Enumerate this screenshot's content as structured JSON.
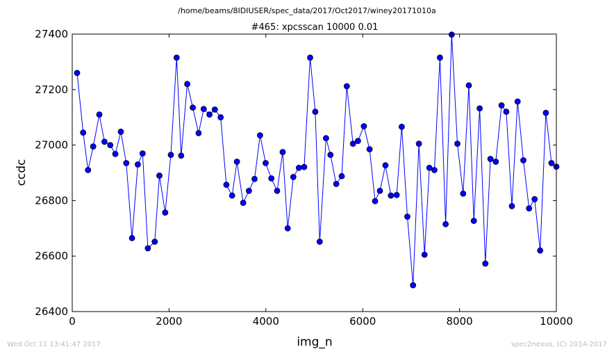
{
  "suptitle": "/home/beams/8IDIUSER/spec_data/2017/Oct2017/winey20171010a",
  "footer": {
    "left": "Wed Oct 11 13:41:47 2017",
    "right": "spec2nexus, (C) 2014-2017"
  },
  "colors": {
    "series": "#0000ff",
    "marker": "#0000ff"
  },
  "chart_data": {
    "type": "line",
    "title": "#465: xpcsscan 10000 0.01",
    "xlabel": "img_n",
    "ylabel": "ccdc",
    "xlim": [
      0,
      10000
    ],
    "ylim": [
      26400,
      27400
    ],
    "xticks": [
      "0",
      "2000",
      "4000",
      "6000",
      "8000",
      "10000"
    ],
    "yticks": [
      "26400",
      "26600",
      "26800",
      "27000",
      "27200",
      "27400"
    ],
    "grid": false,
    "x": [
      100,
      225,
      325,
      433,
      560,
      665,
      785,
      890,
      1005,
      1116,
      1235,
      1354,
      1453,
      1563,
      1704,
      1800,
      1919,
      2037,
      2156,
      2249,
      2376,
      2490,
      2610,
      2716,
      2835,
      2945,
      3066,
      3184,
      3303,
      3402,
      3531,
      3650,
      3766,
      3880,
      3995,
      4114,
      4232,
      4347,
      4450,
      4567,
      4681,
      4790,
      4914,
      5020,
      5112,
      5242,
      5335,
      5454,
      5566,
      5672,
      5799,
      5903,
      6024,
      6142,
      6255,
      6356,
      6469,
      6583,
      6701,
      6807,
      6923,
      7040,
      7160,
      7277,
      7377,
      7480,
      7595,
      7713,
      7838,
      7956,
      8074,
      8192,
      8295,
      8416,
      8534,
      8638,
      8749,
      8868,
      8965,
      9082,
      9200,
      9318,
      9436,
      9551,
      9666,
      9783,
      9900,
      10000
    ],
    "y": [
      27260,
      27045,
      26910,
      26995,
      27110,
      27012,
      27000,
      26968,
      27048,
      26935,
      26665,
      26930,
      26970,
      26628,
      26652,
      26890,
      26757,
      26965,
      27315,
      26962,
      27220,
      27135,
      27043,
      27130,
      27110,
      27128,
      27100,
      26857,
      26818,
      26940,
      26792,
      26835,
      26878,
      27035,
      26935,
      26880,
      26835,
      26975,
      26700,
      26885,
      26918,
      26921,
      27315,
      27120,
      26652,
      27025,
      26965,
      26860,
      26888,
      27212,
      27005,
      27015,
      27068,
      26985,
      26798,
      26835,
      26927,
      26818,
      26820,
      27066,
      26742,
      26495,
      27005,
      26605,
      26918,
      26910,
      27315,
      26715,
      27398,
      27005,
      26825,
      27215,
      26727,
      27132,
      26573,
      26950,
      26940,
      27143,
      27120,
      26780,
      27157,
      26945,
      26772,
      26805,
      26620,
      27116,
      26935,
      26922
    ]
  }
}
